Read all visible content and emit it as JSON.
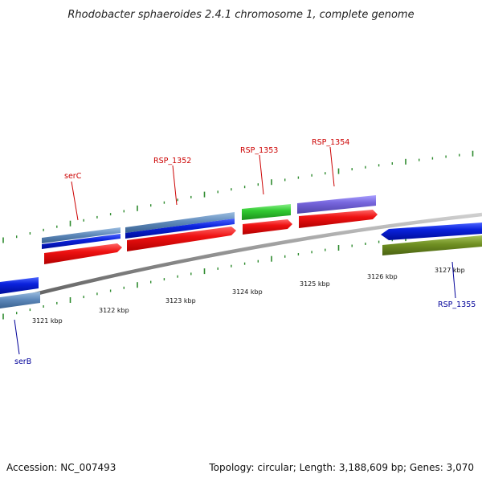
{
  "title": "Rhodobacter sphaeroides 2.4.1 chromosome 1, complete genome",
  "footer": {
    "accession": "Accession: NC_007493",
    "summary": "Topology: circular; Length: 3,188,609 bp; Genes: 3,070"
  },
  "colors": {
    "backbone": "#8a8a8a",
    "tick": "#2e8b2e",
    "forward_label": "#cc0000",
    "reverse_label": "#000099",
    "cds_red": "#ee1111",
    "cds_blue": "#0a22dd",
    "cds_steel": "#5b86b8",
    "cds_green": "#33cc33",
    "cds_purple": "#7766dd",
    "cds_olive": "#6f8f22"
  },
  "position_labels": [
    "3121 kbp",
    "3122 kbp",
    "3123 kbp",
    "3124 kbp",
    "3125 kbp",
    "3126 kbp",
    "3127 kbp"
  ],
  "gene_labels": {
    "serC": "serC",
    "rsp1352": "RSP_1352",
    "rsp1353": "RSP_1353",
    "rsp1354": "RSP_1354",
    "serB": "serB",
    "rsp1355": "RSP_1355"
  }
}
